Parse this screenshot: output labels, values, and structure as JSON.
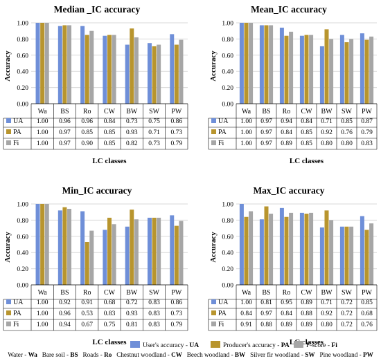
{
  "colors": {
    "UA": "#6f8fd8",
    "PA": "#b8952e",
    "Fi": "#a6a6a6",
    "grid": "#d9d9d9",
    "axis": "#000000"
  },
  "legend": [
    {
      "key": "UA",
      "text": "User's accuracy - ",
      "abbr": "UA"
    },
    {
      "key": "PA",
      "text": "Producer's accuracy - ",
      "abbr": "PA"
    },
    {
      "key": "Fi",
      "text": "F-score - ",
      "abbr": "Fi"
    }
  ],
  "footnote": [
    {
      "name": "Water - ",
      "abbr": "Wa"
    },
    {
      "name": "Bare soil - ",
      "abbr": "BS"
    },
    {
      "name": "Roads - ",
      "abbr": "Ro"
    },
    {
      "name": "Chestnut woodland - ",
      "abbr": "CW"
    },
    {
      "name": "Beech woodland - ",
      "abbr": "BW"
    },
    {
      "name": "Silver fir woodland - ",
      "abbr": "SW"
    },
    {
      "name": "Pine woodland - ",
      "abbr": "PW"
    }
  ],
  "chart_data": [
    {
      "type": "bar",
      "title": "Median _IC accuracy",
      "xlabel": "LC classes",
      "ylabel": "Accuracy",
      "ylim": [
        0,
        1
      ],
      "yticks": [
        "0.00",
        "0.20",
        "0.40",
        "0.60",
        "0.80",
        "1.00"
      ],
      "categories": [
        "Wa",
        "BS",
        "Ro",
        "CW",
        "BW",
        "SW",
        "PW"
      ],
      "series": [
        {
          "name": "UA",
          "values": [
            1.0,
            0.96,
            0.96,
            0.84,
            0.73,
            0.75,
            0.86
          ],
          "labels": [
            "1.00",
            "0.96",
            "0.96",
            "0.84",
            "0.73",
            "0.75",
            "0.86"
          ]
        },
        {
          "name": "PA",
          "values": [
            1.0,
            0.97,
            0.85,
            0.85,
            0.93,
            0.71,
            0.73
          ],
          "labels": [
            "1.00",
            "0.97",
            "0.85",
            "0.85",
            "0.93",
            "0.71",
            "0.73"
          ]
        },
        {
          "name": "Fi",
          "values": [
            1.0,
            0.97,
            0.9,
            0.85,
            0.82,
            0.73,
            0.79
          ],
          "labels": [
            "1.00",
            "0.97",
            "0.90",
            "0.85",
            "0.82",
            "0.73",
            "0.79"
          ]
        }
      ],
      "grid": true
    },
    {
      "type": "bar",
      "title": "Mean_IC accuracy",
      "xlabel": "LC classes",
      "ylabel": "Accuracy",
      "ylim": [
        0,
        1
      ],
      "yticks": [
        "0.00",
        "0.20",
        "0.40",
        "0.60",
        "0.80",
        "1.00"
      ],
      "categories": [
        "Wa",
        "BS",
        "Ro",
        "CW",
        "BW",
        "SW",
        "PW"
      ],
      "series": [
        {
          "name": "UA",
          "values": [
            1.0,
            0.97,
            0.94,
            0.84,
            0.71,
            0.85,
            0.87
          ],
          "labels": [
            "1.00",
            "0.97",
            "0.94",
            "0.84",
            "0.71",
            "0.85",
            "0.87"
          ]
        },
        {
          "name": "PA",
          "values": [
            1.0,
            0.97,
            0.84,
            0.85,
            0.92,
            0.76,
            0.79
          ],
          "labels": [
            "1.00",
            "0.97",
            "0.84",
            "0.85",
            "0.92",
            "0.76",
            "0.79"
          ]
        },
        {
          "name": "Fi",
          "values": [
            1.0,
            0.97,
            0.89,
            0.85,
            0.8,
            0.8,
            0.83
          ],
          "labels": [
            "1.00",
            "0.97",
            "0.89",
            "0.85",
            "0.80",
            "0.80",
            "0.83"
          ]
        }
      ],
      "grid": true
    },
    {
      "type": "bar",
      "title": "Min_IC accuracy",
      "xlabel": "LC classes",
      "ylabel": "Accuracy",
      "ylim": [
        0,
        1
      ],
      "yticks": [
        "0.00",
        "0.20",
        "0.40",
        "0.60",
        "0.80",
        "1.00"
      ],
      "categories": [
        "Wa",
        "BS",
        "Ro",
        "CW",
        "BW",
        "SW",
        "PW"
      ],
      "series": [
        {
          "name": "UA",
          "values": [
            1.0,
            0.92,
            0.91,
            0.68,
            0.72,
            0.83,
            0.86
          ],
          "labels": [
            "1.00",
            "0.92",
            "0.91",
            "0.68",
            "0.72",
            "0.83",
            "0.86"
          ]
        },
        {
          "name": "PA",
          "values": [
            1.0,
            0.96,
            0.53,
            0.83,
            0.93,
            0.83,
            0.73
          ],
          "labels": [
            "1.00",
            "0.96",
            "0.53",
            "0.83",
            "0.93",
            "0.83",
            "0.73"
          ]
        },
        {
          "name": "Fi",
          "values": [
            1.0,
            0.94,
            0.67,
            0.75,
            0.81,
            0.83,
            0.79
          ],
          "labels": [
            "1.00",
            "0.94",
            "0.67",
            "0.75",
            "0.81",
            "0.83",
            "0.79"
          ]
        }
      ],
      "grid": true
    },
    {
      "type": "bar",
      "title": "Max_IC accuracy",
      "xlabel": "LC classes",
      "ylabel": "Accuracy",
      "ylim": [
        0,
        1
      ],
      "yticks": [
        "0.00",
        "0.20",
        "0.40",
        "0.60",
        "0.80",
        "1.00"
      ],
      "categories": [
        "Wa",
        "BS",
        "Ro",
        "CW",
        "BW",
        "SW",
        "PW"
      ],
      "series": [
        {
          "name": "UA",
          "values": [
            1.0,
            0.81,
            0.95,
            0.89,
            0.71,
            0.72,
            0.85
          ],
          "labels": [
            "1.00",
            "0.81",
            "0.95",
            "0.89",
            "0.71",
            "0.72",
            "0.85"
          ]
        },
        {
          "name": "PA",
          "values": [
            0.84,
            0.97,
            0.84,
            0.88,
            0.92,
            0.72,
            0.68
          ],
          "labels": [
            "0.84",
            "0.97",
            "0.84",
            "0.88",
            "0.92",
            "0.72",
            "0.68"
          ]
        },
        {
          "name": "Fi",
          "values": [
            0.91,
            0.88,
            0.89,
            0.89,
            0.8,
            0.72,
            0.76
          ],
          "labels": [
            "0.91",
            "0.88",
            "0.89",
            "0.89",
            "0.80",
            "0.72",
            "0.76"
          ]
        }
      ],
      "grid": true
    }
  ]
}
